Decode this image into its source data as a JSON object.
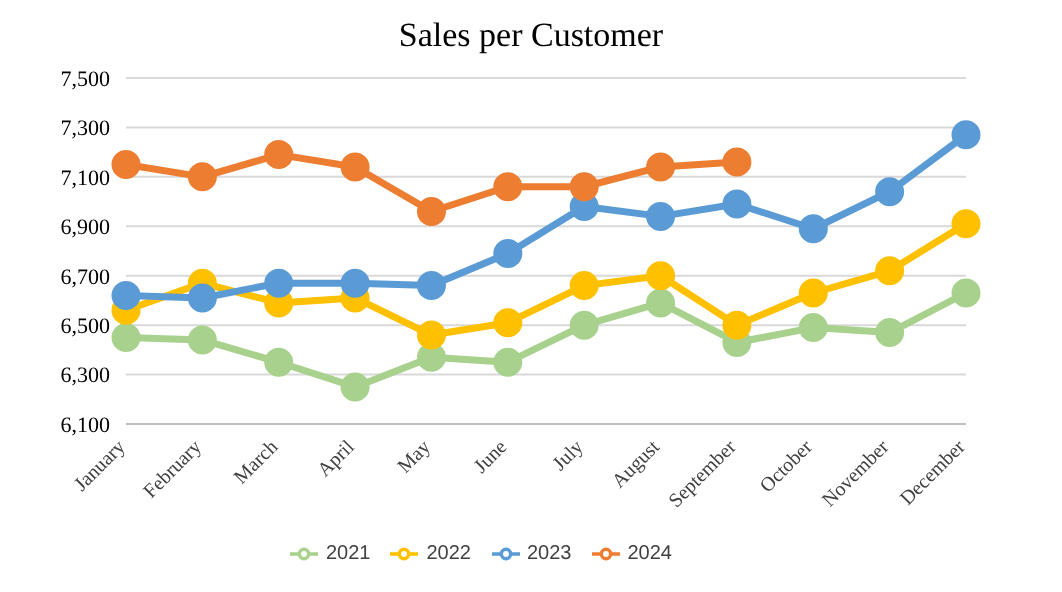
{
  "chart_data": {
    "type": "line",
    "title": "Sales per Customer",
    "categories": [
      "January",
      "February",
      "March",
      "April",
      "May",
      "June",
      "July",
      "August",
      "September",
      "October",
      "November",
      "December"
    ],
    "series": [
      {
        "name": "2021",
        "color": "#a9d18e",
        "values": [
          6450,
          6440,
          6350,
          6250,
          6370,
          6350,
          6500,
          6590,
          6430,
          6490,
          6470,
          6630
        ]
      },
      {
        "name": "2022",
        "color": "#ffc000",
        "values": [
          6560,
          6670,
          6590,
          6610,
          6460,
          6510,
          6660,
          6700,
          6500,
          6630,
          6720,
          6910
        ]
      },
      {
        "name": "2023",
        "color": "#5b9bd5",
        "values": [
          6620,
          6610,
          6670,
          6670,
          6660,
          6790,
          6980,
          6940,
          6990,
          6890,
          7040,
          7270
        ]
      },
      {
        "name": "2024",
        "color": "#ed7d31",
        "values": [
          7150,
          7100,
          7190,
          7140,
          6960,
          7060,
          7060,
          7140,
          7160,
          null,
          null,
          null
        ]
      }
    ],
    "ylim": [
      6100,
      7500
    ],
    "yticks": [
      {
        "value": 6100,
        "label": "6,100"
      },
      {
        "value": 6300,
        "label": "6,300"
      },
      {
        "value": 6500,
        "label": "6,500"
      },
      {
        "value": 6700,
        "label": "6,700"
      },
      {
        "value": 6900,
        "label": "6,900"
      },
      {
        "value": 7100,
        "label": "7,100"
      },
      {
        "value": 7300,
        "label": "7,300"
      },
      {
        "value": 7500,
        "label": "7,500"
      }
    ],
    "grid": "y",
    "legend": "bottom",
    "marker": "circle",
    "line_style": "solid"
  }
}
